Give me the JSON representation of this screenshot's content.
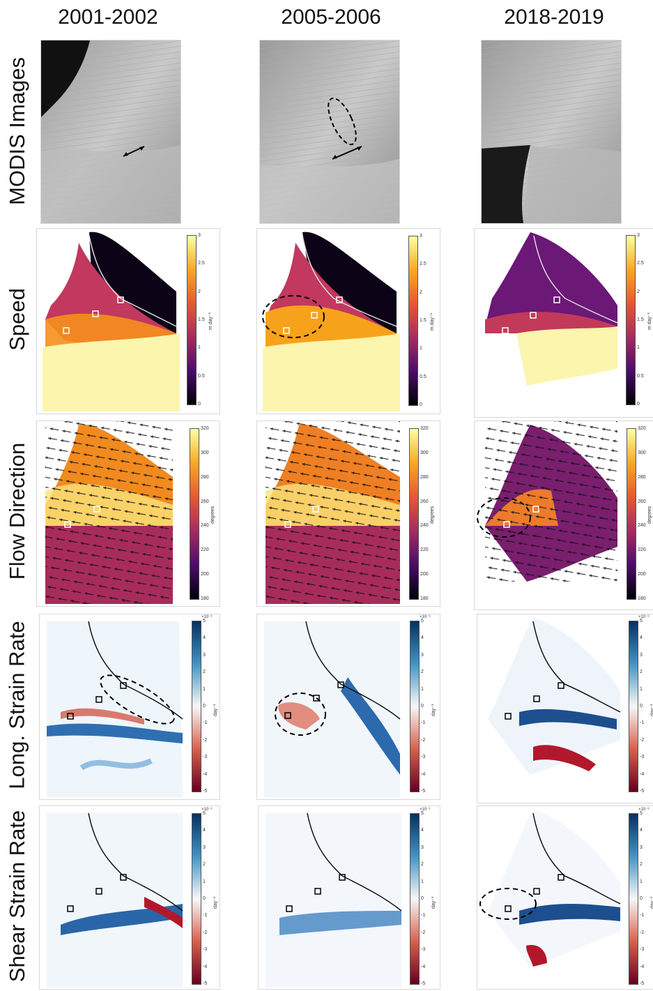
{
  "columns": [
    "2001-2002",
    "2005-2006",
    "2018-2019"
  ],
  "rows": [
    "MODIS Images",
    "Speed",
    "Flow Direction",
    "Long. Strain Rate",
    "Shear Strain Rate"
  ],
  "colorbars": {
    "speed": {
      "ticks": [
        "3",
        "2.5",
        "2",
        "1.5",
        "1",
        "0.5",
        "0"
      ],
      "unit": "m day⁻¹",
      "colormap": "inferno"
    },
    "flow": {
      "ticks": [
        "320",
        "300",
        "280",
        "260",
        "240",
        "220",
        "200",
        "180"
      ],
      "unit": "degrees",
      "colormap": "inferno"
    },
    "strain": {
      "ticks": [
        "5",
        "4",
        "3",
        "2",
        "1",
        "0",
        "-1",
        "-2",
        "-3",
        "-4",
        "-5"
      ],
      "unit": "day⁻¹",
      "multiplier": "×10⁻³",
      "colormap": "red-white-blue"
    }
  },
  "colors": {
    "speed_high": "#fbf5ad",
    "blue": "#1f5ea8",
    "red": "#b2182b",
    "dark": "#1a0b2e"
  }
}
